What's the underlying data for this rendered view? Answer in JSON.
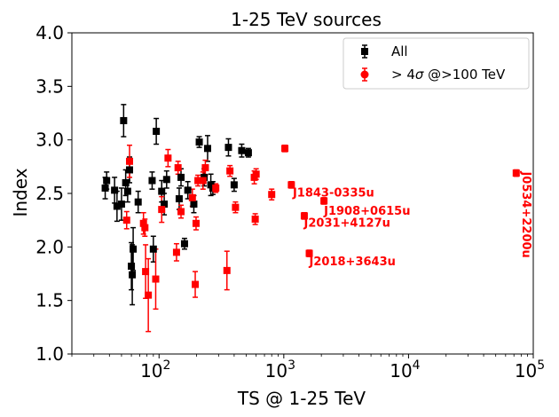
{
  "chart_data": {
    "type": "scatter",
    "title": "1-25 TeV sources",
    "xlabel": "TS @ 1-25 TeV",
    "ylabel": "Index",
    "xscale": "log",
    "xlim": [
      20,
      100000
    ],
    "ylim": [
      1.0,
      4.0
    ],
    "x_ticks": [
      {
        "value": 100,
        "base": "10",
        "exp": "2"
      },
      {
        "value": 1000,
        "base": "10",
        "exp": "3"
      },
      {
        "value": 10000,
        "base": "10",
        "exp": "4"
      },
      {
        "value": 100000,
        "base": "10",
        "exp": "5"
      }
    ],
    "y_ticks": [
      {
        "value": 1.0,
        "label": "1.0"
      },
      {
        "value": 1.5,
        "label": "1.5"
      },
      {
        "value": 2.0,
        "label": "2.0"
      },
      {
        "value": 2.5,
        "label": "2.5"
      },
      {
        "value": 3.0,
        "label": "3.0"
      },
      {
        "value": 3.5,
        "label": "3.5"
      },
      {
        "value": 4.0,
        "label": "4.0"
      }
    ],
    "legend_position": "top-right",
    "series": [
      {
        "name": "All",
        "color": "#000000",
        "marker": "square",
        "points": [
          {
            "x": 37,
            "y": 2.55,
            "err": 0.1
          },
          {
            "x": 38,
            "y": 2.62,
            "err": 0.08
          },
          {
            "x": 44,
            "y": 2.53,
            "err": 0.12
          },
          {
            "x": 46,
            "y": 2.38,
            "err": 0.14
          },
          {
            "x": 50,
            "y": 2.4,
            "err": 0.15
          },
          {
            "x": 52,
            "y": 3.18,
            "err": 0.15
          },
          {
            "x": 54,
            "y": 2.6,
            "err": 0.12
          },
          {
            "x": 56,
            "y": 2.52,
            "err": 0.1
          },
          {
            "x": 58,
            "y": 2.72,
            "err": 0.12
          },
          {
            "x": 60,
            "y": 1.82,
            "err": 0.22
          },
          {
            "x": 61,
            "y": 1.74,
            "err": 0.28
          },
          {
            "x": 62,
            "y": 1.98,
            "err": 0.2
          },
          {
            "x": 68,
            "y": 2.42,
            "err": 0.1
          },
          {
            "x": 88,
            "y": 2.62,
            "err": 0.08
          },
          {
            "x": 90,
            "y": 1.98,
            "err": 0.12
          },
          {
            "x": 95,
            "y": 3.08,
            "err": 0.12
          },
          {
            "x": 105,
            "y": 2.52,
            "err": 0.1
          },
          {
            "x": 110,
            "y": 2.4,
            "err": 0.1
          },
          {
            "x": 115,
            "y": 2.63,
            "err": 0.08
          },
          {
            "x": 145,
            "y": 2.45,
            "err": 0.1
          },
          {
            "x": 150,
            "y": 2.65,
            "err": 0.08
          },
          {
            "x": 160,
            "y": 2.03,
            "err": 0.05
          },
          {
            "x": 170,
            "y": 2.53,
            "err": 0.08
          },
          {
            "x": 190,
            "y": 2.4,
            "err": 0.08
          },
          {
            "x": 210,
            "y": 2.98,
            "err": 0.05
          },
          {
            "x": 230,
            "y": 2.65,
            "err": 0.08
          },
          {
            "x": 245,
            "y": 2.92,
            "err": 0.12
          },
          {
            "x": 260,
            "y": 2.58,
            "err": 0.1
          },
          {
            "x": 270,
            "y": 2.55,
            "err": 0.06
          },
          {
            "x": 360,
            "y": 2.93,
            "err": 0.08
          },
          {
            "x": 400,
            "y": 2.58,
            "err": 0.06
          },
          {
            "x": 460,
            "y": 2.9,
            "err": 0.06
          },
          {
            "x": 520,
            "y": 2.88,
            "err": 0.04
          }
        ]
      },
      {
        "name": "> 4σ @>100 TeV",
        "legend_prefix": "> 4",
        "legend_sigma": "σ",
        "legend_suffix": " @>100 TeV",
        "color": "#ff0000",
        "marker": "circle",
        "points": [
          {
            "x": 55,
            "y": 2.25,
            "err": 0.08
          },
          {
            "x": 58,
            "y": 2.8,
            "err": 0.15
          },
          {
            "x": 75,
            "y": 2.22,
            "err": 0.1
          },
          {
            "x": 77,
            "y": 2.18,
            "err": 0.08
          },
          {
            "x": 78,
            "y": 1.77,
            "err": 0.25
          },
          {
            "x": 82,
            "y": 1.55,
            "err": 0.34
          },
          {
            "x": 94,
            "y": 1.7,
            "err": 0.28
          },
          {
            "x": 105,
            "y": 2.35,
            "err": 0.12
          },
          {
            "x": 118,
            "y": 2.83,
            "err": 0.08
          },
          {
            "x": 138,
            "y": 1.95,
            "err": 0.08
          },
          {
            "x": 142,
            "y": 2.74,
            "err": 0.06
          },
          {
            "x": 150,
            "y": 2.33,
            "err": 0.06
          },
          {
            "x": 185,
            "y": 2.46,
            "err": 0.08
          },
          {
            "x": 195,
            "y": 1.65,
            "err": 0.12
          },
          {
            "x": 198,
            "y": 2.22,
            "err": 0.06
          },
          {
            "x": 205,
            "y": 2.62,
            "err": 0.05
          },
          {
            "x": 225,
            "y": 2.62,
            "err": 0.08
          },
          {
            "x": 235,
            "y": 2.74,
            "err": 0.07
          },
          {
            "x": 285,
            "y": 2.55,
            "err": 0.04
          },
          {
            "x": 350,
            "y": 1.78,
            "err": 0.18
          },
          {
            "x": 370,
            "y": 2.71,
            "err": 0.05
          },
          {
            "x": 410,
            "y": 2.37,
            "err": 0.05
          },
          {
            "x": 580,
            "y": 2.65,
            "err": 0.06
          },
          {
            "x": 590,
            "y": 2.26,
            "err": 0.05
          },
          {
            "x": 600,
            "y": 2.68,
            "err": 0.05
          },
          {
            "x": 800,
            "y": 2.49,
            "err": 0.05
          },
          {
            "x": 1020,
            "y": 2.92,
            "err": 0.03
          },
          {
            "x": 1150,
            "y": 2.58,
            "err": 0.03
          },
          {
            "x": 1460,
            "y": 2.29,
            "err": 0.03
          },
          {
            "x": 1600,
            "y": 1.94,
            "err": 0.03
          },
          {
            "x": 2100,
            "y": 2.43,
            "err": 0.03
          },
          {
            "x": 73000,
            "y": 2.69,
            "err": 0.03
          }
        ]
      }
    ],
    "annotations": [
      {
        "text": "J1843-0335u",
        "x": 1180,
        "y": 2.47,
        "rotation": 0
      },
      {
        "text": "J1908+0615u",
        "x": 2100,
        "y": 2.3,
        "rotation": 0
      },
      {
        "text": "J2031+4127u",
        "x": 1450,
        "y": 2.19,
        "rotation": 0
      },
      {
        "text": "J2018+3643u",
        "x": 1600,
        "y": 1.83,
        "rotation": 0
      },
      {
        "text": "J0534+2200u",
        "x": 82000,
        "y": 2.3,
        "rotation": 90
      }
    ]
  }
}
